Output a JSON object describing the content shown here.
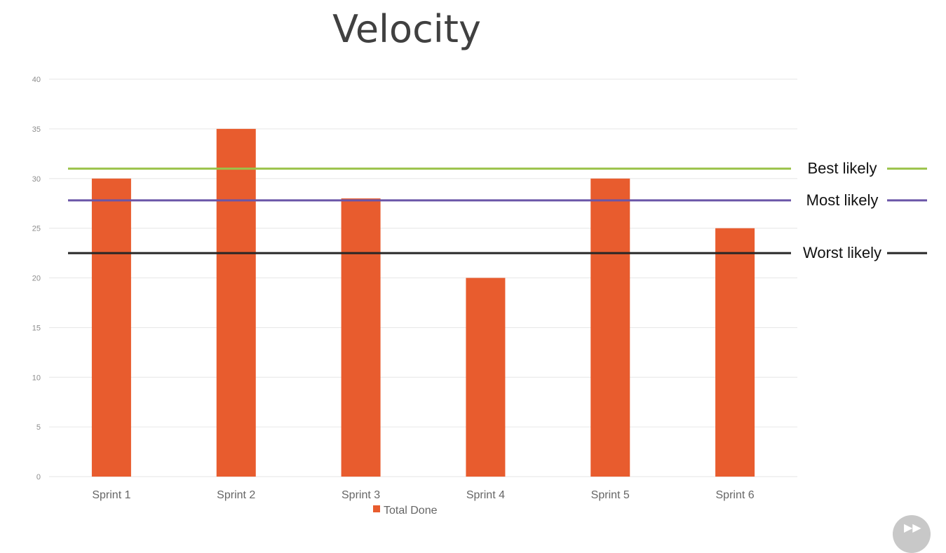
{
  "chart_data": {
    "type": "bar",
    "title": "Velocity",
    "categories": [
      "Sprint 1",
      "Sprint 2",
      "Sprint 3",
      "Sprint 4",
      "Sprint 5",
      "Sprint 6"
    ],
    "series": [
      {
        "name": "Total Done",
        "values": [
          30,
          35,
          28,
          20,
          30,
          25
        ],
        "color": "#E85C2E"
      }
    ],
    "ylim": [
      0,
      40
    ],
    "yticks": [
      0,
      5,
      10,
      15,
      20,
      25,
      30,
      35,
      40
    ],
    "grid": true,
    "legend_position": "bottom",
    "reference_lines": [
      {
        "label": "Best likely",
        "value": 31,
        "color": "#9BC34A"
      },
      {
        "label": "Most likely",
        "value": 27.8,
        "color": "#6A55A8"
      },
      {
        "label": "Worst likely",
        "value": 22.5,
        "color": "#262626"
      }
    ]
  },
  "controls": {
    "play_icon": "fast-forward-icon"
  }
}
